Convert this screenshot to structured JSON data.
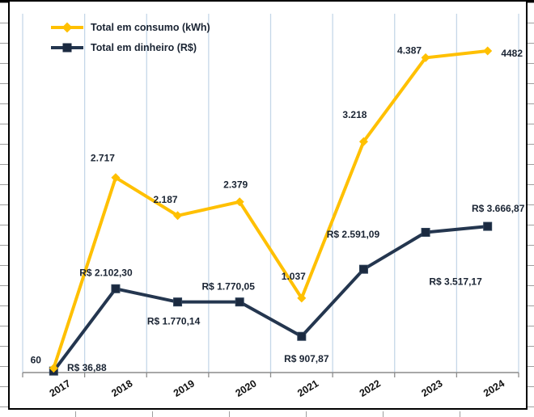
{
  "colors": {
    "consumo_line": "#FFC000",
    "dinheiro_line": "#24364F",
    "dinheiro_marker": "#1B2A40",
    "label_text": "#1A2433",
    "year_text": "#111111",
    "gridline": "#C5D7E8",
    "axis_line": "#8C8C8C",
    "frame": "#000000"
  },
  "legend": {
    "position": "top-left",
    "items": [
      {
        "label": "Total em consumo (kWh)",
        "marker": "diamond",
        "color": "#FFC000"
      },
      {
        "label": "Total em dinheiro (R$)",
        "marker": "square",
        "color": "#24364F"
      }
    ]
  },
  "chart_data": {
    "type": "line",
    "categories": [
      "2017",
      "2018",
      "2019",
      "2020",
      "2021",
      "2022",
      "2023",
      "2024"
    ],
    "x_axis": {
      "labels_rotated": true,
      "tick_between_categories": true
    },
    "axes": {
      "primary": {
        "min": 0,
        "max": 5000,
        "visible": false
      },
      "secondary": {
        "min": 0,
        "max": 9000,
        "visible": false
      }
    },
    "gridlines": {
      "vertical": true,
      "horizontal": false
    },
    "series": [
      {
        "name": "Total em dinheiro (R$)",
        "axis": "secondary",
        "color": "#24364F",
        "marker": "square",
        "values": [
          36.88,
          2102.3,
          1770.14,
          1770.05,
          907.87,
          2591.09,
          3517.17,
          3666.87
        ],
        "labels": [
          "R$ 36,88",
          "R$ 2.102,30",
          "R$ 1.770,14",
          "R$ 1.770,05",
          "R$ 907,87",
          "R$ 2.591,09",
          "R$ 3.517,17",
          "R$ 3.666,87"
        ],
        "label_offsets": [
          [
            41,
            -4
          ],
          [
            -12,
            -20
          ],
          [
            -5,
            24
          ],
          [
            -14,
            -19
          ],
          [
            6,
            28
          ],
          [
            -13,
            -43
          ],
          [
            37,
            61
          ],
          [
            13,
            -22
          ]
        ]
      },
      {
        "name": "Total em consumo (kWh)",
        "axis": "primary",
        "color": "#FFC000",
        "marker": "diamond",
        "values": [
          60,
          2717,
          2187,
          2379,
          1037,
          3218,
          4387,
          4482
        ],
        "labels": [
          "60",
          "2.717",
          "2.187",
          "2.379",
          "1.037",
          "3.218",
          "4.387",
          "4482"
        ],
        "label_offsets": [
          [
            -22,
            -10
          ],
          [
            -16,
            -24
          ],
          [
            -15,
            -20
          ],
          [
            -5,
            -21
          ],
          [
            -10,
            -27
          ],
          [
            -11,
            -33
          ],
          [
            -20,
            -9
          ],
          [
            30,
            3
          ]
        ]
      }
    ]
  }
}
